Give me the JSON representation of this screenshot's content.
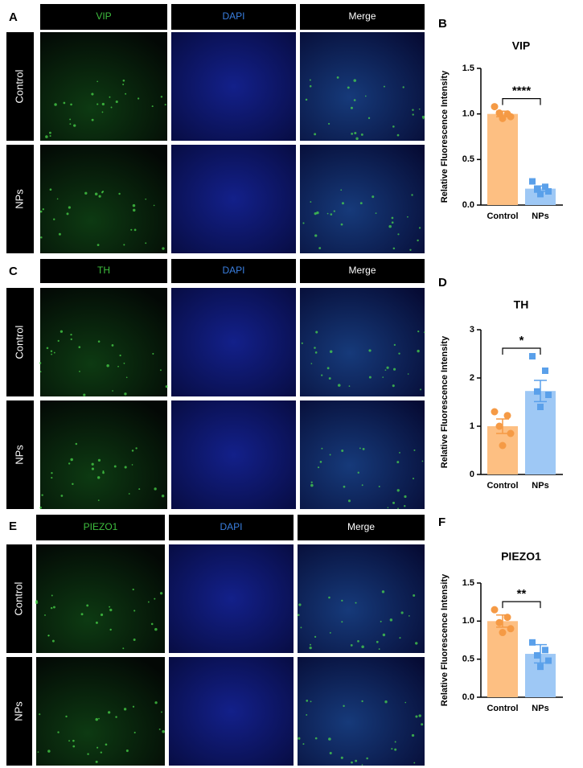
{
  "figure": {
    "panels": [
      {
        "label": "A",
        "columns": [
          "VIP",
          "DAPI",
          "Merge"
        ],
        "rows": [
          "Control",
          "NPs"
        ]
      },
      {
        "label": "C",
        "columns": [
          "TH",
          "DAPI",
          "Merge"
        ],
        "rows": [
          "Control",
          "NPs"
        ]
      },
      {
        "label": "E",
        "columns": [
          "PIEZO1",
          "DAPI",
          "Merge"
        ],
        "rows": [
          "Control",
          "NPs"
        ]
      }
    ]
  },
  "chart_data": [
    {
      "type": "bar",
      "panel_label": "B",
      "title": "VIP",
      "ylabel": "Relative Fluorescence Intensity",
      "categories": [
        "Control",
        "NPs"
      ],
      "values": [
        1.0,
        0.18
      ],
      "errors": [
        0.03,
        0.03
      ],
      "points": [
        [
          1.08,
          1.0,
          1.01,
          0.97,
          0.95
        ],
        [
          0.26,
          0.2,
          0.17,
          0.15,
          0.12
        ]
      ],
      "colors": [
        "#fdbf82",
        "#9ec8f5"
      ],
      "point_colors": [
        "#f59a45",
        "#5aa0ea"
      ],
      "markers": [
        "circle",
        "square"
      ],
      "significance": "****",
      "ylim": [
        0,
        1.5
      ],
      "yticks": [
        {
          "value": 0,
          "label": "0.0"
        },
        0.5,
        {
          "value": 1,
          "label": "1.0"
        },
        1.5
      ]
    },
    {
      "type": "bar",
      "panel_label": "D",
      "title": "TH",
      "ylabel": "Relative Fluorescence Intensity",
      "categories": [
        "Control",
        "NPs"
      ],
      "values": [
        1.0,
        1.73
      ],
      "errors": [
        0.15,
        0.22
      ],
      "points": [
        [
          1.3,
          1.22,
          1.0,
          0.85,
          0.6
        ],
        [
          2.45,
          2.15,
          1.72,
          1.65,
          1.4
        ]
      ],
      "colors": [
        "#fdbf82",
        "#9ec8f5"
      ],
      "point_colors": [
        "#f59a45",
        "#5aa0ea"
      ],
      "markers": [
        "circle",
        "square"
      ],
      "significance": "*",
      "ylim": [
        0,
        3
      ],
      "yticks": [
        0,
        1,
        2,
        3
      ]
    },
    {
      "type": "bar",
      "panel_label": "F",
      "title": "PIEZO1",
      "ylabel": "Relative Fluorescence Intensity",
      "categories": [
        "Control",
        "NPs"
      ],
      "values": [
        1.0,
        0.57
      ],
      "errors": [
        0.08,
        0.12
      ],
      "points": [
        [
          1.15,
          1.05,
          0.98,
          0.9,
          0.85
        ],
        [
          0.72,
          0.62,
          0.55,
          0.48,
          0.4
        ]
      ],
      "colors": [
        "#fdbf82",
        "#9ec8f5"
      ],
      "point_colors": [
        "#f59a45",
        "#5aa0ea"
      ],
      "markers": [
        "circle",
        "square"
      ],
      "significance": "**",
      "ylim": [
        0,
        1.5
      ],
      "yticks": [
        {
          "value": 0,
          "label": "0.0"
        },
        0.5,
        {
          "value": 1,
          "label": "1.0"
        },
        1.5
      ]
    }
  ]
}
